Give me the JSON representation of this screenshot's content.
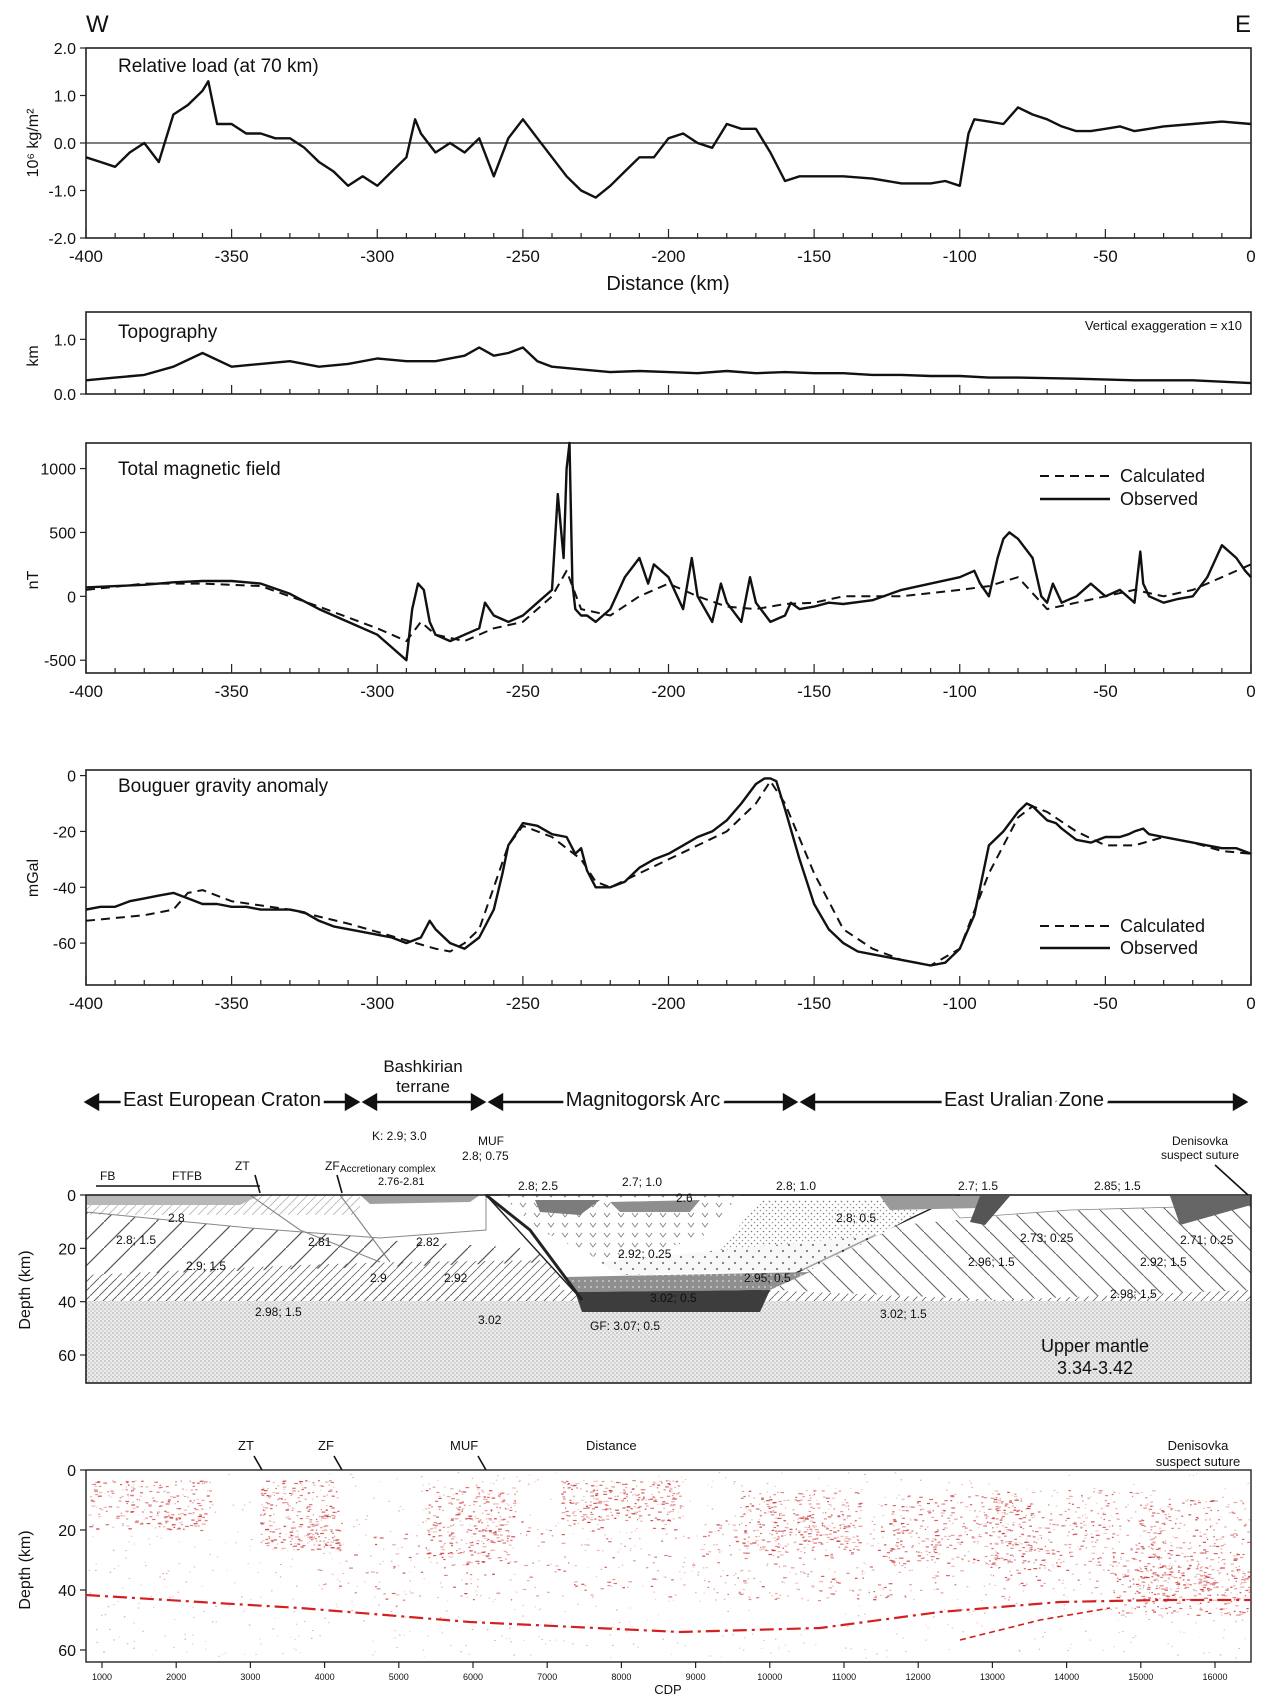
{
  "figure": {
    "orientation": {
      "west": "W",
      "east": "E"
    },
    "x_ticks": [
      "-400",
      "-350",
      "-300",
      "-250",
      "-200",
      "-150",
      "-100",
      "-50",
      "0"
    ],
    "legend": {
      "calculated": "Calculated",
      "observed": "Observed"
    },
    "section_depth_ticks": [
      "0",
      "20",
      "40",
      "60"
    ],
    "section_depth_label": "Depth (km)"
  },
  "chart_data": [
    {
      "type": "line",
      "title": "Relative load (at 70 km)",
      "xlabel": "Distance (km)",
      "ylabel": "10⁶ kg/m²",
      "xlim": [
        -400,
        0
      ],
      "ylim": [
        -2.0,
        2.0
      ],
      "yticks": [
        "2.0",
        "1.0",
        "0.0",
        "-1.0",
        "-2.0"
      ],
      "zero_line": true,
      "series": [
        {
          "style": "solid",
          "x": [
            -400,
            -395,
            -390,
            -385,
            -380,
            -375,
            -370,
            -365,
            -360,
            -358,
            -355,
            -350,
            -345,
            -340,
            -335,
            -330,
            -325,
            -320,
            -315,
            -310,
            -305,
            -300,
            -295,
            -290,
            -287,
            -285,
            -280,
            -275,
            -270,
            -265,
            -260,
            -255,
            -250,
            -245,
            -240,
            -235,
            -230,
            -225,
            -220,
            -215,
            -210,
            -205,
            -200,
            -195,
            -190,
            -185,
            -180,
            -175,
            -170,
            -165,
            -160,
            -155,
            -150,
            -145,
            -140,
            -130,
            -120,
            -110,
            -105,
            -100,
            -97,
            -95,
            -90,
            -85,
            -80,
            -75,
            -70,
            -65,
            -60,
            -55,
            -50,
            -45,
            -40,
            -35,
            -30,
            -20,
            -10,
            0
          ],
          "y": [
            -0.3,
            -0.4,
            -0.5,
            -0.2,
            0.0,
            -0.4,
            0.6,
            0.8,
            1.1,
            1.3,
            0.4,
            0.4,
            0.2,
            0.2,
            0.1,
            0.1,
            -0.1,
            -0.4,
            -0.6,
            -0.9,
            -0.7,
            -0.9,
            -0.6,
            -0.3,
            0.5,
            0.2,
            -0.2,
            0.0,
            -0.2,
            0.1,
            -0.7,
            0.1,
            0.5,
            0.1,
            -0.3,
            -0.7,
            -1.0,
            -1.15,
            -0.9,
            -0.6,
            -0.3,
            -0.3,
            0.1,
            0.2,
            0.0,
            -0.1,
            0.4,
            0.3,
            0.3,
            -0.2,
            -0.8,
            -0.7,
            -0.7,
            -0.7,
            -0.7,
            -0.75,
            -0.85,
            -0.85,
            -0.8,
            -0.9,
            0.2,
            0.5,
            0.45,
            0.4,
            0.75,
            0.6,
            0.5,
            0.35,
            0.25,
            0.25,
            0.3,
            0.35,
            0.25,
            0.3,
            0.35,
            0.4,
            0.45,
            0.4
          ]
        }
      ]
    },
    {
      "type": "line",
      "title": "Topography",
      "ylabel": "km",
      "annotation": "Vertical exaggeration = x10",
      "xlim": [
        -400,
        0
      ],
      "ylim": [
        0.0,
        1.5
      ],
      "yticks": [
        "1.0",
        "0.0"
      ],
      "series": [
        {
          "style": "solid",
          "x": [
            -400,
            -390,
            -380,
            -370,
            -360,
            -350,
            -340,
            -330,
            -320,
            -310,
            -300,
            -290,
            -280,
            -270,
            -265,
            -260,
            -255,
            -250,
            -245,
            -240,
            -230,
            -220,
            -210,
            -200,
            -190,
            -180,
            -170,
            -160,
            -150,
            -140,
            -130,
            -120,
            -110,
            -100,
            -90,
            -80,
            -60,
            -40,
            -20,
            0
          ],
          "y": [
            0.25,
            0.3,
            0.35,
            0.5,
            0.75,
            0.5,
            0.55,
            0.6,
            0.5,
            0.55,
            0.65,
            0.6,
            0.6,
            0.7,
            0.85,
            0.7,
            0.75,
            0.85,
            0.6,
            0.5,
            0.45,
            0.4,
            0.42,
            0.4,
            0.38,
            0.42,
            0.38,
            0.4,
            0.38,
            0.38,
            0.35,
            0.35,
            0.33,
            0.33,
            0.3,
            0.3,
            0.28,
            0.25,
            0.25,
            0.2
          ]
        }
      ]
    },
    {
      "type": "line",
      "title": "Total magnetic field",
      "ylabel": "nT",
      "xlim": [
        -400,
        0
      ],
      "ylim": [
        -600,
        1200
      ],
      "yticks": [
        "1000",
        "500",
        "0",
        "-500"
      ],
      "legend_position": "top-right",
      "series": [
        {
          "name": "Calculated",
          "style": "dashed",
          "x": [
            -400,
            -380,
            -360,
            -340,
            -320,
            -300,
            -290,
            -285,
            -280,
            -270,
            -260,
            -250,
            -240,
            -235,
            -230,
            -220,
            -210,
            -200,
            -190,
            -180,
            -170,
            -160,
            -150,
            -140,
            -120,
            -100,
            -90,
            -80,
            -70,
            -60,
            -50,
            -40,
            -30,
            -20,
            -10,
            0
          ],
          "y": [
            50,
            100,
            100,
            80,
            -80,
            -250,
            -350,
            -200,
            -300,
            -350,
            -250,
            -200,
            0,
            200,
            -100,
            -150,
            0,
            100,
            0,
            -80,
            -100,
            -60,
            -50,
            0,
            0,
            50,
            80,
            150,
            -100,
            -50,
            0,
            50,
            0,
            50,
            150,
            250
          ]
        },
        {
          "name": "Observed",
          "style": "solid",
          "x": [
            -400,
            -390,
            -380,
            -370,
            -360,
            -350,
            -340,
            -330,
            -320,
            -310,
            -300,
            -295,
            -290,
            -288,
            -286,
            -284,
            -282,
            -280,
            -275,
            -270,
            -265,
            -263,
            -260,
            -255,
            -250,
            -245,
            -240,
            -238,
            -236,
            -235,
            -234,
            -233,
            -232,
            -230,
            -228,
            -225,
            -220,
            -215,
            -210,
            -207,
            -205,
            -200,
            -195,
            -192,
            -190,
            -185,
            -182,
            -180,
            -175,
            -172,
            -170,
            -165,
            -160,
            -158,
            -155,
            -150,
            -145,
            -140,
            -130,
            -120,
            -110,
            -100,
            -95,
            -93,
            -90,
            -87,
            -85,
            -83,
            -80,
            -75,
            -72,
            -70,
            -68,
            -65,
            -60,
            -55,
            -50,
            -45,
            -40,
            -38,
            -37,
            -35,
            -30,
            -25,
            -20,
            -15,
            -10,
            -5,
            -2,
            0
          ],
          "y": [
            70,
            80,
            90,
            110,
            120,
            120,
            100,
            20,
            -100,
            -200,
            -300,
            -400,
            -500,
            -100,
            100,
            50,
            -200,
            -300,
            -350,
            -300,
            -250,
            -50,
            -150,
            -200,
            -150,
            -50,
            50,
            800,
            300,
            1000,
            1200,
            100,
            -100,
            -150,
            -150,
            -200,
            -100,
            150,
            300,
            100,
            250,
            150,
            -100,
            300,
            0,
            -200,
            100,
            -50,
            -200,
            150,
            -50,
            -200,
            -150,
            -50,
            -100,
            -80,
            -50,
            -60,
            -30,
            50,
            100,
            150,
            200,
            100,
            0,
            300,
            450,
            500,
            450,
            300,
            0,
            -50,
            100,
            -50,
            0,
            100,
            0,
            50,
            -50,
            350,
            100,
            0,
            -50,
            -20,
            0,
            150,
            400,
            300,
            200,
            150
          ]
        }
      ]
    },
    {
      "type": "line",
      "title": "Bouguer gravity anomaly",
      "ylabel": "mGal",
      "xlim": [
        -400,
        0
      ],
      "ylim": [
        -75,
        2
      ],
      "yticks": [
        "0",
        "-20",
        "-40",
        "-60"
      ],
      "legend_position": "bottom-right",
      "series": [
        {
          "name": "Calculated",
          "style": "dashed",
          "x": [
            -400,
            -380,
            -370,
            -365,
            -360,
            -350,
            -330,
            -310,
            -300,
            -290,
            -280,
            -275,
            -270,
            -265,
            -260,
            -255,
            -250,
            -240,
            -230,
            -225,
            -220,
            -210,
            -200,
            -190,
            -180,
            -170,
            -165,
            -160,
            -150,
            -140,
            -130,
            -120,
            -110,
            -100,
            -90,
            -80,
            -75,
            -70,
            -60,
            -50,
            -40,
            -30,
            -20,
            -10,
            0
          ],
          "y": [
            -52,
            -50,
            -48,
            -42,
            -41,
            -45,
            -48,
            -53,
            -56,
            -59,
            -62,
            -63,
            -60,
            -55,
            -40,
            -25,
            -18,
            -22,
            -30,
            -38,
            -40,
            -35,
            -30,
            -25,
            -20,
            -10,
            -2,
            -10,
            -35,
            -55,
            -62,
            -66,
            -68,
            -62,
            -35,
            -15,
            -11,
            -13,
            -20,
            -25,
            -25,
            -22,
            -24,
            -27,
            -28
          ]
        },
        {
          "name": "Observed",
          "style": "solid",
          "x": [
            -400,
            -395,
            -390,
            -385,
            -380,
            -375,
            -370,
            -365,
            -360,
            -355,
            -350,
            -345,
            -340,
            -335,
            -330,
            -325,
            -320,
            -315,
            -310,
            -305,
            -300,
            -295,
            -290,
            -285,
            -282,
            -280,
            -275,
            -270,
            -265,
            -260,
            -257,
            -255,
            -250,
            -245,
            -240,
            -235,
            -232,
            -230,
            -228,
            -225,
            -220,
            -215,
            -210,
            -205,
            -200,
            -195,
            -190,
            -185,
            -180,
            -175,
            -170,
            -167,
            -165,
            -163,
            -160,
            -155,
            -150,
            -145,
            -140,
            -135,
            -130,
            -125,
            -120,
            -115,
            -110,
            -105,
            -100,
            -95,
            -92,
            -90,
            -85,
            -80,
            -77,
            -75,
            -72,
            -70,
            -67,
            -65,
            -60,
            -55,
            -50,
            -45,
            -42,
            -40,
            -37,
            -35,
            -30,
            -25,
            -20,
            -15,
            -10,
            -5,
            0
          ],
          "y": [
            -48,
            -47,
            -47,
            -45,
            -44,
            -43,
            -42,
            -44,
            -46,
            -46,
            -47,
            -47,
            -48,
            -48,
            -48,
            -49,
            -52,
            -54,
            -55,
            -56,
            -57,
            -58,
            -60,
            -58,
            -52,
            -55,
            -60,
            -62,
            -58,
            -48,
            -35,
            -25,
            -17,
            -18,
            -21,
            -22,
            -28,
            -26,
            -34,
            -40,
            -40,
            -38,
            -33,
            -30,
            -28,
            -25,
            -22,
            -20,
            -16,
            -10,
            -3,
            -1,
            -1,
            -2,
            -12,
            -30,
            -46,
            -55,
            -60,
            -63,
            -64,
            -65,
            -66,
            -67,
            -68,
            -67,
            -62,
            -50,
            -35,
            -25,
            -20,
            -13,
            -10,
            -11,
            -14,
            -16,
            -17,
            -19,
            -23,
            -24,
            -22,
            -22,
            -21,
            -20,
            -19,
            -21,
            -22,
            -23,
            -24,
            -25,
            -26,
            -26,
            -28
          ]
        }
      ]
    }
  ],
  "cross_section": {
    "zones": [
      {
        "label": "East European Craton"
      },
      {
        "label": "Bashkirian\nterrane"
      },
      {
        "label": "Magnitogorsk Arc"
      },
      {
        "label": "East Uralian Zone"
      }
    ],
    "structures": [
      {
        "label": "FB"
      },
      {
        "label": "FTFB"
      },
      {
        "label": "ZT"
      },
      {
        "label": "ZF"
      },
      {
        "label": "K: 2.9; 3.0"
      },
      {
        "label": "MUF"
      },
      {
        "label": "2.8; 0.75"
      },
      {
        "label": "Accretionary complex"
      },
      {
        "label": "2.76-2.81"
      },
      {
        "label": "Denisovka\nsuspect suture"
      }
    ],
    "body_labels": [
      {
        "label": "2.8"
      },
      {
        "label": "2.8; 1.5"
      },
      {
        "label": "2.9; 1.5"
      },
      {
        "label": "2.98; 1.5"
      },
      {
        "label": "2.81"
      },
      {
        "label": "2.82"
      },
      {
        "label": "2.9"
      },
      {
        "label": "2.92"
      },
      {
        "label": "3.02"
      },
      {
        "label": "2.8; 2.5"
      },
      {
        "label": "2.7; 1.0"
      },
      {
        "label": "2.6"
      },
      {
        "label": "2.92; 0.25"
      },
      {
        "label": "2.95; 0.5"
      },
      {
        "label": "3.02; 0.5"
      },
      {
        "label": "GF: 3.07; 0.5"
      },
      {
        "label": "2.8; 1.0"
      },
      {
        "label": "2.8; 0.5"
      },
      {
        "label": "2.7; 1.5"
      },
      {
        "label": "2.85; 1.5"
      },
      {
        "label": "2.73; 0.25"
      },
      {
        "label": "2.71; 0.25"
      },
      {
        "label": "2.96; 1.5"
      },
      {
        "label": "2.92; 1.5"
      },
      {
        "label": "2.98; 1.5"
      },
      {
        "label": "3.02; 1.5"
      },
      {
        "label": "Upper mantle\n3.34-3.42"
      }
    ]
  },
  "seismic_section": {
    "labels": [
      {
        "label": "ZT"
      },
      {
        "label": "ZF"
      },
      {
        "label": "MUF"
      },
      {
        "label": "Distance"
      },
      {
        "label": "Denisovka\nsuspect suture"
      }
    ],
    "cdp_ticks": [
      "1000",
      "2000",
      "3000",
      "4000",
      "5000",
      "6000",
      "7000",
      "8000",
      "9000",
      "10000",
      "11000",
      "12000",
      "13000",
      "14000",
      "15000",
      "16000"
    ],
    "xlabel": "CDP",
    "moho_color": "#d42020",
    "reflectivity_color": "#c82828"
  }
}
